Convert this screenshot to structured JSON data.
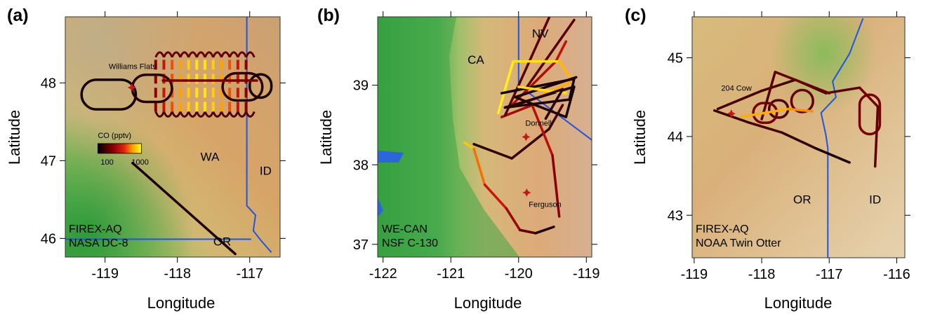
{
  "panels": [
    {
      "id": "a",
      "letter": "(a)",
      "xlabel": "Longitude",
      "ylabel": "Latitude",
      "xlim": [
        -119.55,
        -116.58
      ],
      "ylim": [
        45.76,
        48.85
      ],
      "xticks": [
        -119,
        -118,
        -117
      ],
      "yticks": [
        46,
        47,
        48
      ],
      "campaign": [
        "FIREX-AQ",
        "NASA DC-8"
      ],
      "places": [
        {
          "name": "Williams Flats",
          "lon": -118.95,
          "lat": 48.18
        },
        {
          "name": "WA",
          "lon": -117.55,
          "lat": 47.0
        },
        {
          "name": "ID",
          "lon": -116.78,
          "lat": 46.82
        },
        {
          "name": "OR",
          "lon": -117.38,
          "lat": 45.91
        }
      ],
      "fires": [
        {
          "lon": -118.63,
          "lat": 47.94
        }
      ],
      "legend": {
        "title": "CO (pptv)",
        "min_label": "100",
        "max_label": "1000",
        "lon": -119.1,
        "lat": 47.22
      },
      "borders": [
        [
          [
            -117.04,
            49.0
          ],
          [
            -117.04,
            46.42
          ],
          [
            -116.92,
            46.3
          ],
          [
            -116.95,
            46.1
          ],
          [
            -116.85,
            45.98
          ],
          [
            -116.7,
            45.82
          ]
        ],
        [
          [
            -119.7,
            45.99
          ],
          [
            -116.98,
            45.99
          ]
        ]
      ],
      "tracks": [
        {
          "points": [
            [
              -118.62,
              46.97
            ],
            [
              -117.2,
              45.8
            ]
          ],
          "levels": [
            0.05,
            0.1
          ]
        },
        {
          "points": [
            [
              -118.2,
              48.03
            ],
            [
              -116.9,
              48.03
            ]
          ],
          "levels": [
            0.4,
            0.2
          ]
        }
      ],
      "loops": [
        {
          "lon": -118.95,
          "lat": 47.85,
          "w": 0.75,
          "h": 0.38,
          "level": 0.05
        },
        {
          "lon": -118.35,
          "lat": 47.93,
          "w": 0.55,
          "h": 0.35,
          "level": 0.1
        },
        {
          "lon": -117.1,
          "lat": 47.95,
          "w": 0.55,
          "h": 0.35,
          "level": 0.1
        },
        {
          "lon": -116.85,
          "lat": 47.96,
          "w": 0.3,
          "h": 0.3,
          "level": 0.05
        }
      ],
      "raster": {
        "lon_min": -118.3,
        "lon_max": -117.05,
        "lat_min": 47.63,
        "lat_max": 48.33,
        "count": 12
      }
    },
    {
      "id": "b",
      "letter": "(b)",
      "xlabel": "Longitude",
      "ylabel": "Latitude",
      "xlim": [
        -122.08,
        -118.92
      ],
      "ylim": [
        36.84,
        39.86
      ],
      "xticks": [
        -122,
        -121,
        -120,
        -119
      ],
      "yticks": [
        37,
        38,
        39
      ],
      "campaign": [
        "WE-CAN",
        "NSF C-130"
      ],
      "places": [
        {
          "name": "CA",
          "lon": -120.63,
          "lat": 39.27
        },
        {
          "name": "NV",
          "lon": -119.68,
          "lat": 39.6
        },
        {
          "name": "Donnell",
          "lon": -119.9,
          "lat": 38.49
        },
        {
          "name": "Ferguson",
          "lon": -119.85,
          "lat": 37.47
        }
      ],
      "fires": [
        {
          "lon": -119.89,
          "lat": 38.35
        },
        {
          "lon": -119.88,
          "lat": 37.65
        }
      ],
      "borders": [
        [
          [
            -120.0,
            40.0
          ],
          [
            -120.0,
            39.0
          ],
          [
            -118.9,
            38.3
          ]
        ]
      ],
      "tracks": [
        {
          "points": [
            [
              -120.8,
              38.28
            ],
            [
              -120.66,
              38.2
            ],
            [
              -120.5,
              37.75
            ],
            [
              -120.18,
              37.45
            ],
            [
              -119.98,
              37.18
            ],
            [
              -119.75,
              37.14
            ],
            [
              -119.48,
              37.22
            ]
          ],
          "levels": [
            0.9,
            0.85,
            0.6,
            0.45,
            0.35,
            0.12,
            0.05
          ]
        },
        {
          "points": [
            [
              -120.66,
              38.26
            ],
            [
              -120.1,
              38.08
            ],
            [
              -119.55,
              38.45
            ],
            [
              -119.35,
              38.75
            ]
          ],
          "levels": [
            0.1,
            0.15,
            0.15,
            0.2
          ]
        },
        {
          "points": [
            [
              -120.25,
              38.6
            ],
            [
              -119.8,
              38.75
            ],
            [
              -119.5,
              38.12
            ],
            [
              -119.4,
              37.35
            ]
          ],
          "levels": [
            0.3,
            0.55,
            0.4,
            0.3
          ]
        },
        {
          "points": [
            [
              -120.2,
              38.62
            ],
            [
              -119.55,
              39.85
            ]
          ],
          "levels": [
            0.25,
            0.2
          ]
        },
        {
          "points": [
            [
              -119.9,
              38.95
            ],
            [
              -119.18,
              39.82
            ]
          ],
          "levels": [
            0.15,
            0.3
          ]
        },
        {
          "points": [
            [
              -120.1,
              38.75
            ],
            [
              -119.45,
              39.3
            ],
            [
              -119.3,
              39.55
            ]
          ],
          "levels": [
            0.35,
            0.55,
            0.45
          ]
        },
        {
          "points": [
            [
              -120.3,
              38.65
            ],
            [
              -120.08,
              39.3
            ],
            [
              -119.4,
              39.3
            ],
            [
              -119.2,
              39.05
            ],
            [
              -119.85,
              38.8
            ]
          ],
          "levels": [
            0.95,
            0.98,
            0.9,
            0.8,
            0.85
          ]
        },
        {
          "points": [
            [
              -120.25,
              38.9
            ],
            [
              -119.18,
              39.08
            ],
            [
              -119.25,
              38.82
            ],
            [
              -120.2,
              38.72
            ],
            [
              -119.18,
              38.98
            ],
            [
              -119.3,
              38.6
            ],
            [
              -120.05,
              38.85
            ],
            [
              -119.15,
              39.1
            ]
          ],
          "levels": [
            0.05,
            0.05,
            0.05,
            0.1,
            0.05,
            0.05,
            0.1,
            0.05
          ]
        },
        {
          "points": [
            [
              -120.0,
              38.98
            ],
            [
              -119.3,
              38.9
            ]
          ],
          "levels": [
            0.95,
            0.9
          ]
        },
        {
          "points": [
            [
              -120.15,
              38.72
            ],
            [
              -119.35,
              38.95
            ],
            [
              -119.6,
              38.58
            ]
          ],
          "levels": [
            0.1,
            0.1,
            0.1
          ]
        }
      ],
      "loops": []
    },
    {
      "id": "c",
      "letter": "(c)",
      "xlabel": "Longitude",
      "ylabel": "Latitude",
      "xlim": [
        -119.03,
        -115.88
      ],
      "ylim": [
        42.46,
        45.52
      ],
      "xticks": [
        -119,
        -118,
        -117,
        -116
      ],
      "yticks": [
        43,
        44,
        45
      ],
      "campaign": [
        "FIREX-AQ",
        "NOAA Twin Otter"
      ],
      "places": [
        {
          "name": "204 Cow",
          "lon": -118.6,
          "lat": 44.58
        },
        {
          "name": "OR",
          "lon": -117.4,
          "lat": 43.15
        },
        {
          "name": "ID",
          "lon": -116.32,
          "lat": 43.15
        },
        {
          "name": "NOAA Twin Otter",
          "lon": 0,
          "lat": 0,
          "hidden": true
        }
      ],
      "fires": [
        {
          "lon": -118.45,
          "lat": 44.29
        }
      ],
      "borders": [
        [
          [
            -116.5,
            45.5
          ],
          [
            -116.7,
            45.05
          ],
          [
            -116.95,
            44.7
          ],
          [
            -116.9,
            44.5
          ],
          [
            -117.12,
            44.3
          ],
          [
            -117.05,
            44.02
          ],
          [
            -117.02,
            43.85
          ],
          [
            -117.02,
            42.0
          ]
        ]
      ],
      "tracks": [
        {
          "points": [
            [
              -118.65,
              44.35
            ],
            [
              -118.0,
              44.58
            ],
            [
              -117.5,
              44.72
            ],
            [
              -117.05,
              44.55
            ],
            [
              -116.55,
              44.62
            ],
            [
              -116.28,
              44.38
            ],
            [
              -116.32,
              43.62
            ]
          ],
          "levels": [
            0.15,
            0.2,
            0.15,
            0.25,
            0.2,
            0.35,
            0.15
          ]
        },
        {
          "points": [
            [
              -118.7,
              44.33
            ],
            [
              -118.2,
              44.18
            ],
            [
              -117.7,
              44.05
            ],
            [
              -117.2,
              43.85
            ],
            [
              -116.7,
              43.67
            ]
          ],
          "levels": [
            0.1,
            0.2,
            0.15,
            0.1,
            0.05
          ]
        },
        {
          "points": [
            [
              -118.0,
              44.22
            ],
            [
              -117.8,
              44.82
            ],
            [
              -117.0,
              44.55
            ]
          ],
          "levels": [
            0.25,
            0.2,
            0.3
          ]
        },
        {
          "points": [
            [
              -118.3,
              44.25
            ],
            [
              -117.6,
              44.35
            ],
            [
              -117.25,
              44.32
            ]
          ],
          "levels": [
            0.7,
            0.95,
            0.6
          ]
        }
      ],
      "loops": [
        {
          "lon": -117.75,
          "lat": 44.35,
          "w": 0.28,
          "h": 0.22,
          "level": 0.2
        },
        {
          "lon": -117.4,
          "lat": 44.45,
          "w": 0.32,
          "h": 0.28,
          "level": 0.25
        },
        {
          "lon": -117.95,
          "lat": 44.3,
          "w": 0.35,
          "h": 0.25,
          "level": 0.3
        },
        {
          "lon": -116.4,
          "lat": 44.28,
          "w": 0.3,
          "h": 0.5,
          "level": 0.3
        }
      ]
    }
  ]
}
